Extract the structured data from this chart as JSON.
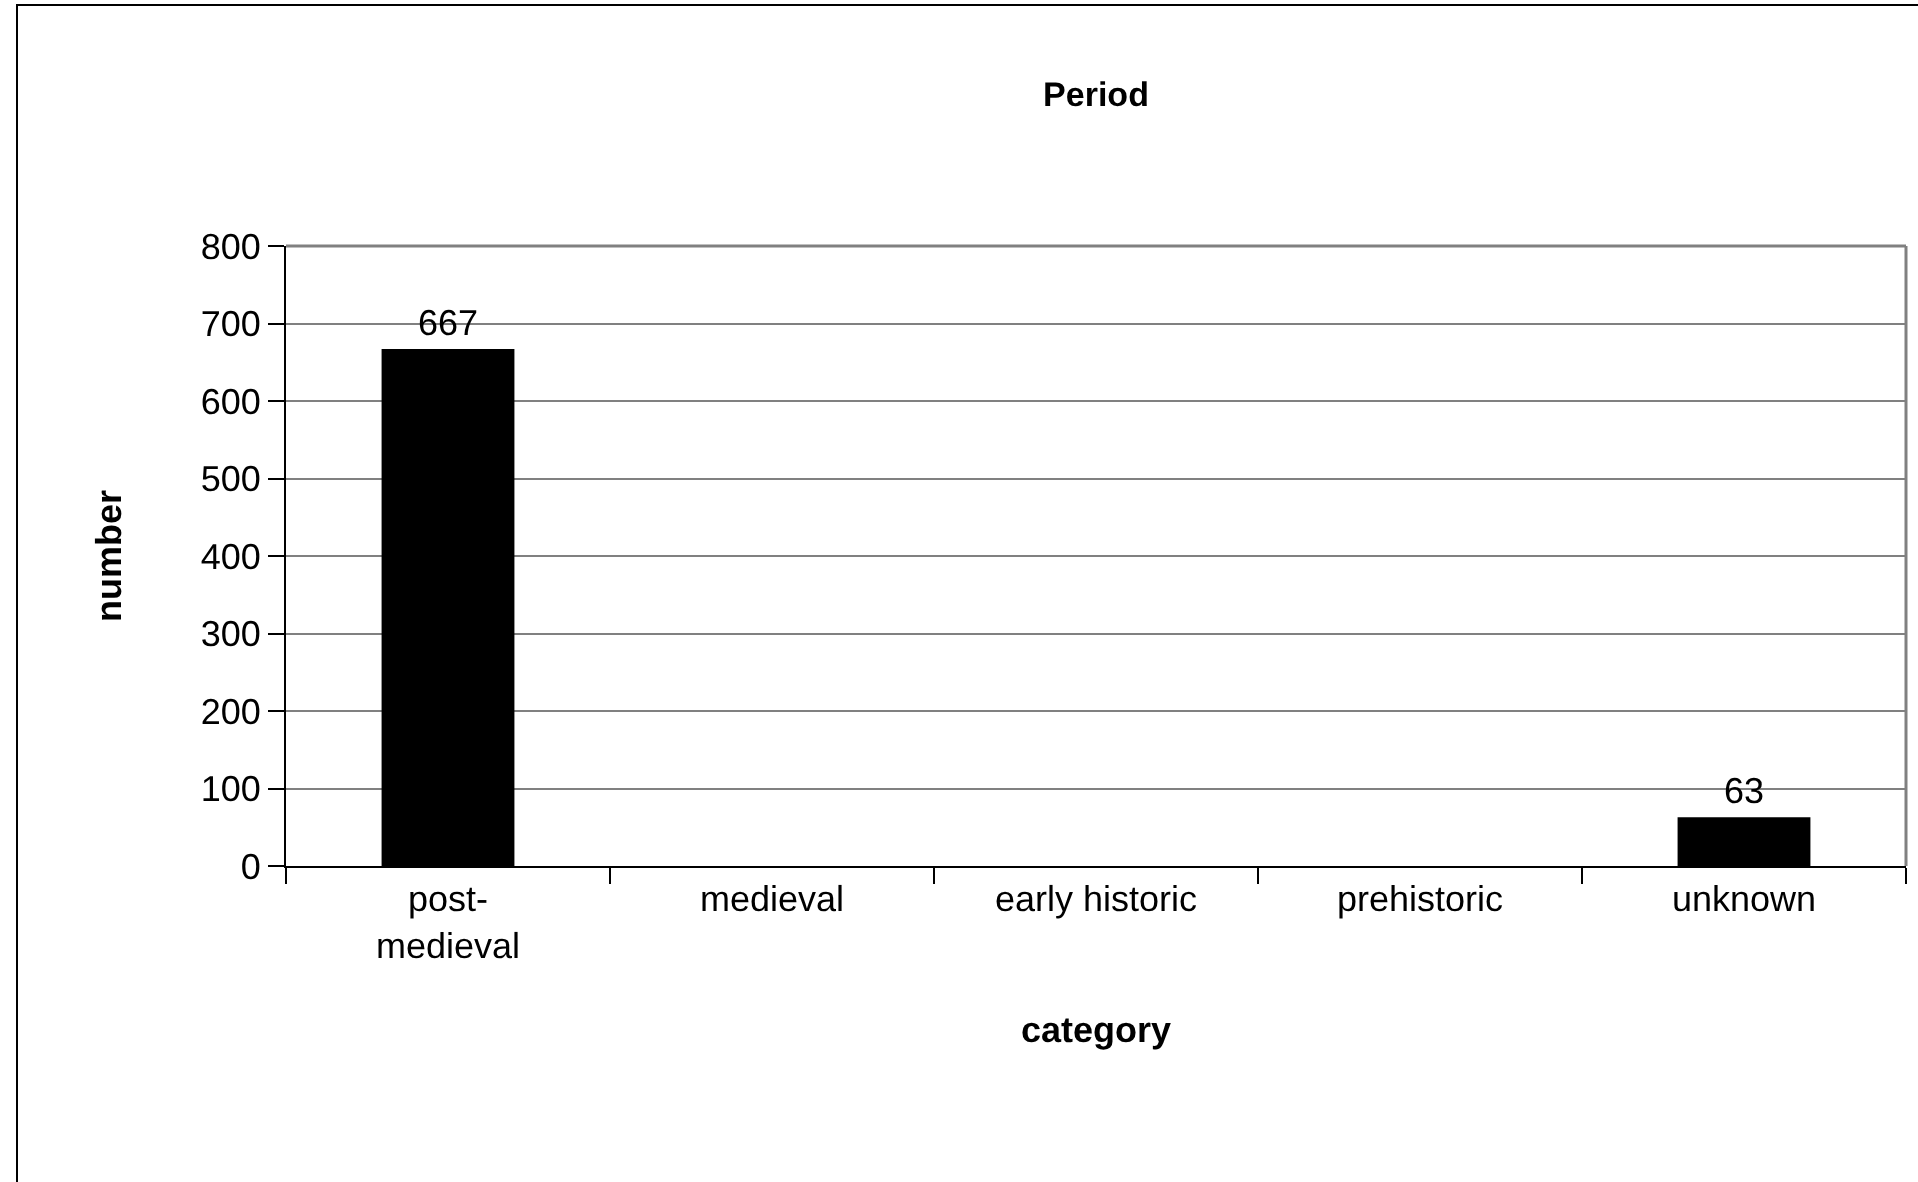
{
  "chart_data": {
    "type": "bar",
    "title": "Period",
    "xlabel": "category",
    "ylabel": "number",
    "categories": [
      "post-medieval",
      "medieval",
      "early historic",
      "prehistoric",
      "unknown"
    ],
    "values": [
      667,
      null,
      null,
      null,
      63
    ],
    "value_labels": [
      "667",
      null,
      null,
      null,
      "63"
    ],
    "color": "#000000",
    "ylim": [
      0,
      800
    ],
    "yticks": [
      0,
      100,
      200,
      300,
      400,
      500,
      600,
      700,
      800
    ],
    "grid": "y"
  }
}
